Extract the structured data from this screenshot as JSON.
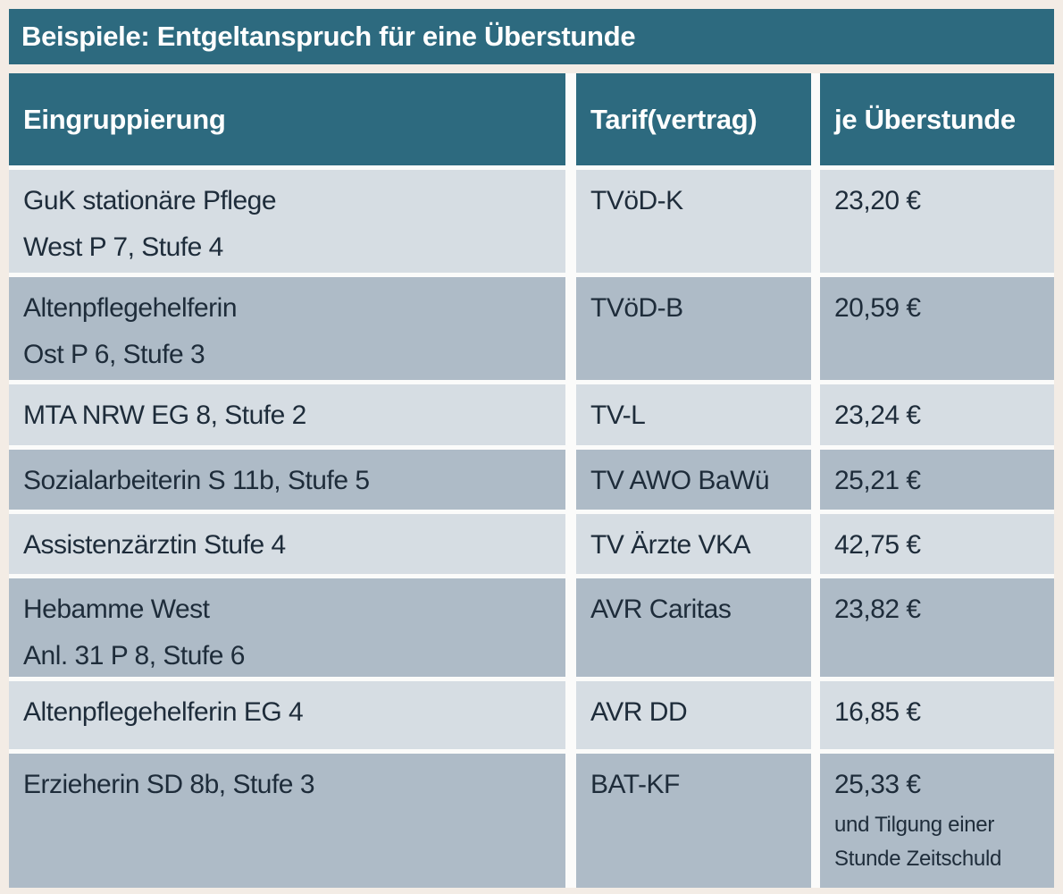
{
  "title": "Beispiele: Entgeltanspruch für eine Überstunde",
  "table": {
    "columns": [
      "Eingruppierung",
      "Tarif(vertrag)",
      "je Überstunde"
    ],
    "rows": [
      {
        "group": [
          "GuK stationäre Pflege",
          "West P 7, Stufe 4"
        ],
        "tarif": "TVöD-K",
        "price": "23,20 €"
      },
      {
        "group": [
          "Altenpflegehelferin",
          "Ost P 6, Stufe 3"
        ],
        "tarif": "TVöD-B",
        "price": "20,59 €"
      },
      {
        "group": [
          "MTA NRW EG 8, Stufe 2"
        ],
        "tarif": "TV-L",
        "price": "23,24 €"
      },
      {
        "group": [
          "Sozialarbeiterin S 11b, Stufe 5"
        ],
        "tarif": "TV AWO BaWü",
        "price": "25,21 €"
      },
      {
        "group": [
          "Assistenzärztin Stufe 4"
        ],
        "tarif": "TV Ärzte VKA",
        "price": "42,75 €"
      },
      {
        "group": [
          "Hebamme West",
          "Anl. 31 P 8, Stufe 6"
        ],
        "tarif": "AVR Caritas",
        "price": "23,82 €"
      },
      {
        "group": [
          "Altenpflegehelferin EG 4"
        ],
        "tarif": "AVR DD",
        "price": "16,85 €"
      },
      {
        "group": [
          "Erzieherin SD 8b, Stufe 3"
        ],
        "tarif": "BAT-KF",
        "price": "25,33 €",
        "price_note": [
          "und Tilgung einer",
          "Stunde Zeitschuld"
        ]
      }
    ]
  },
  "colors": {
    "accent_teal": "#2d6a7f",
    "row_light": "#d6dde3",
    "row_dark": "#aebbc7",
    "page_background": "#f3ece5",
    "text_dark": "#1e2c3a",
    "text_light": "#ffffff"
  }
}
